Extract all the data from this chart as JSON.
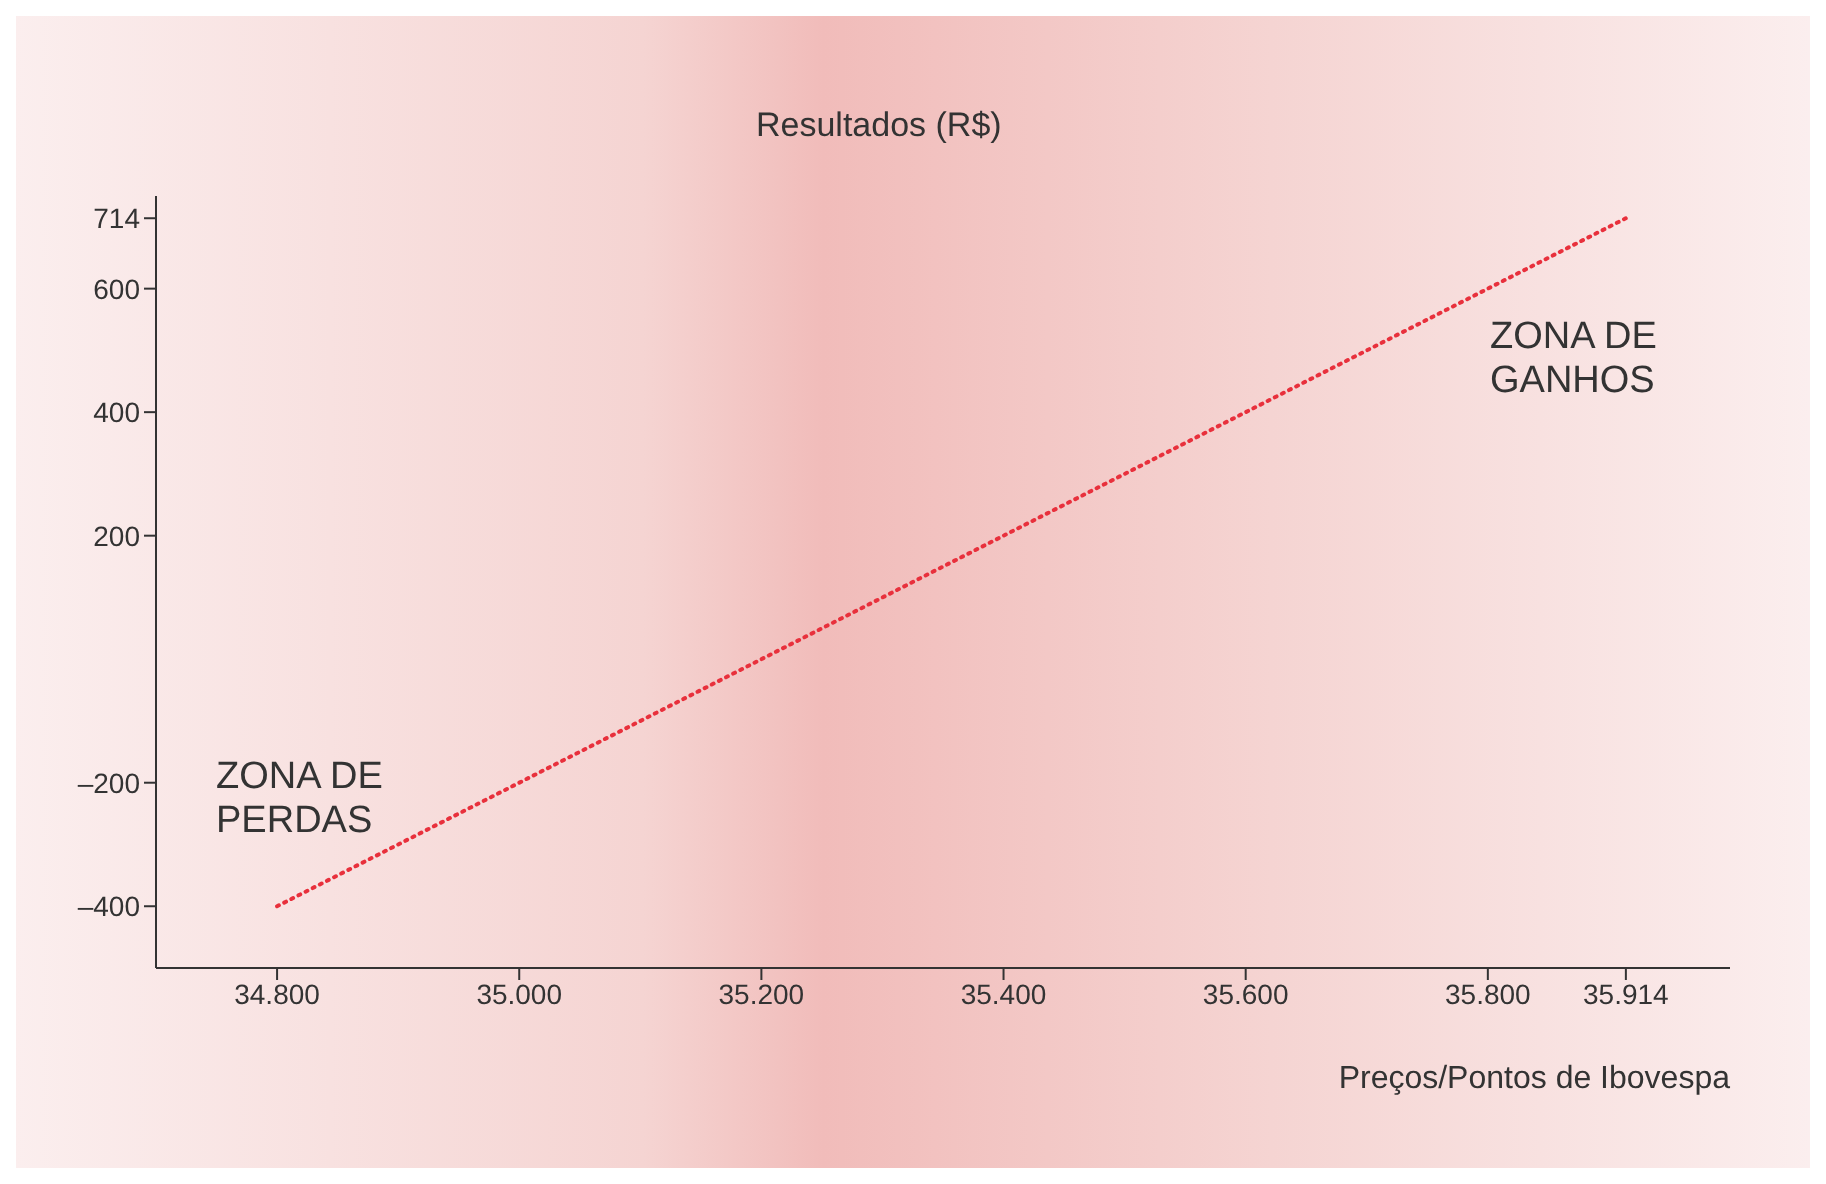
{
  "chart_data": {
    "type": "line",
    "xlabel": "Preços/Pontos de Ibovespa",
    "ylabel": "Resultados (R$)",
    "x": [
      34800,
      35000,
      35200,
      35400,
      35600,
      35800,
      35914
    ],
    "series": [
      {
        "color": "#e8303c",
        "values": [
          -400,
          -200,
          0,
          200,
          400,
          600,
          714
        ]
      }
    ],
    "xlim": [
      34700,
      36000
    ],
    "ylim": [
      -500,
      750
    ],
    "xticks": [
      {
        "value": 34800,
        "label": "34.800"
      },
      {
        "value": 35000,
        "label": "35.000"
      },
      {
        "value": 35200,
        "label": "35.200"
      },
      {
        "value": 35400,
        "label": "35.400"
      },
      {
        "value": 35600,
        "label": "35.600"
      },
      {
        "value": 35800,
        "label": "35.800"
      },
      {
        "value": 35914,
        "label": "35.914"
      }
    ],
    "yticks": [
      {
        "value": -400,
        "label": "–400"
      },
      {
        "value": -200,
        "label": "–200"
      },
      {
        "value": 200,
        "label": "200"
      },
      {
        "value": 400,
        "label": "400"
      },
      {
        "value": 600,
        "label": "600"
      },
      {
        "value": 714,
        "label": "714"
      }
    ],
    "annotations": [
      "ZONA DE GANHOS",
      "ZONA DE PERDAS"
    ],
    "marker": "none",
    "line_style": "dotted",
    "grid": false
  }
}
